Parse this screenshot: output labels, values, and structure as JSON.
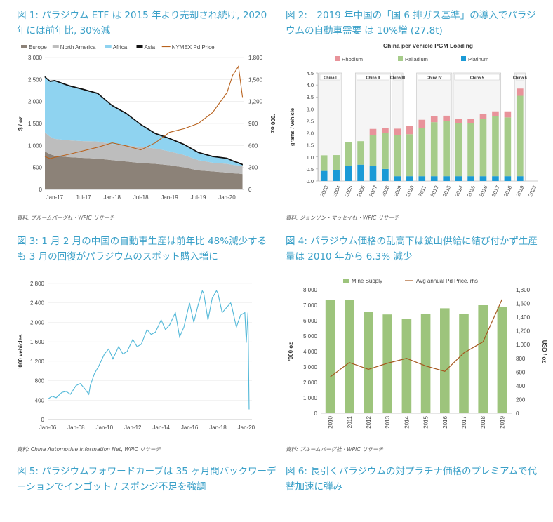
{
  "captions": {
    "fig1": "図 1: パラジウム ETF は 2015 年より売却され続け, 2020 年には前年比, 30%減",
    "fig2": "図 2:　2019 年中国の「国 6 排ガス基準」の導入でパラジウムの自動車需要 は 10%増 (27.8t)",
    "fig3": "図 3: 1 月 2 月の中国の自動車生産は前年比 48%減少するも 3 月の回復がパラジウムのスポット購入増に",
    "fig4": "図 4: パラジウム価格の乱高下は鉱山供給に結び付かず生産量は 2010 年から 6.3% 減少",
    "fig5": "図 5: パラジウムフォワードカーブは 35 ヶ月間バックワーデーションでインゴット / スポンジ不足を強調",
    "fig6": "図 6: 長引くパラジウムの対プラチナ価格のプレミアムで代替加速に弾み"
  },
  "sources": {
    "fig1": "資料: ブルームバーグ社・WPIC リサーチ",
    "fig2": "資料: ジョンソン・マッセイ社・WPIC リサーチ",
    "fig3": "資料: China Automotive information Net, WPIC リサーチ",
    "fig4": "資料: ブルームバーグ社・WPIC リサーチ"
  },
  "colors": {
    "caption": "#3aa0c8",
    "europe": "#8c8278",
    "north_america": "#bdbdbd",
    "africa": "#8fd3f0",
    "asia": "#111111",
    "pd_price": "#b8621e",
    "rhodium": "#e8939a",
    "palladium": "#a6cc8a",
    "platinum": "#1b9ad6",
    "vehicles": "#52b8d8",
    "mine_supply": "#9dc47c",
    "annual_price": "#a5571f"
  },
  "chart_data": [
    {
      "id": "fig1",
      "type": "area",
      "legend": [
        "Europe",
        "North America",
        "Africa",
        "Asia",
        "NYMEX Pd Price"
      ],
      "legend_placement": "top",
      "ylabel": "$ / oz",
      "y2label": "'000 oz",
      "xticks": [
        "Jan-17",
        "Jul-17",
        "Jan-18",
        "Jul-18",
        "Jan-19",
        "Jul-19",
        "Jan-20"
      ],
      "yticks": [
        "0",
        "500",
        "1,000",
        "1,500",
        "2,000",
        "2,500",
        "3,000"
      ],
      "y2ticks": [
        "0",
        "300",
        "600",
        "900",
        "1,200",
        "1,500",
        "1,800"
      ],
      "ylim": [
        0,
        3000
      ],
      "y2lim": [
        0,
        1800
      ],
      "x": [
        2016.83,
        2016.92,
        2017.0,
        2017.25,
        2017.5,
        2017.75,
        2018.0,
        2018.25,
        2018.5,
        2018.75,
        2019.0,
        2019.25,
        2019.5,
        2019.75,
        2020.0,
        2020.1,
        2020.2,
        2020.27
      ],
      "series": [
        {
          "name": "Europe",
          "axis": "right",
          "values": [
            520,
            480,
            460,
            440,
            430,
            420,
            400,
            380,
            360,
            350,
            330,
            300,
            260,
            245,
            230,
            220,
            215,
            210
          ]
        },
        {
          "name": "North America",
          "axis": "right",
          "values": [
            260,
            240,
            230,
            230,
            230,
            235,
            220,
            220,
            220,
            210,
            190,
            170,
            140,
            120,
            120,
            115,
            112,
            110
          ]
        },
        {
          "name": "Africa",
          "axis": "right",
          "values": [
            750,
            750,
            790,
            740,
            700,
            650,
            520,
            430,
            300,
            200,
            170,
            140,
            100,
            80,
            70,
            50,
            30,
            15
          ]
        },
        {
          "name": "Asia",
          "axis": "right",
          "values": [
            10,
            10,
            10,
            10,
            10,
            10,
            10,
            10,
            10,
            10,
            10,
            10,
            10,
            10,
            10,
            10,
            10,
            10
          ]
        },
        {
          "name": "NYMEX Pd Price",
          "axis": "left",
          "values": [
            750,
            700,
            730,
            800,
            880,
            960,
            1060,
            990,
            900,
            1060,
            1300,
            1380,
            1500,
            1750,
            2200,
            2600,
            2800,
            2100
          ]
        }
      ]
    },
    {
      "id": "fig2",
      "type": "bar",
      "title": "China per Vehicle PGM Loading",
      "legend": [
        "Rhodium",
        "Palladium",
        "Platinum"
      ],
      "legend_placement": "top",
      "ylabel": "grams / vehicle",
      "ylim": [
        0,
        4.5
      ],
      "yticks": [
        "0.0",
        "0.5",
        "1.0",
        "1.5",
        "2.0",
        "2.5",
        "3.0",
        "3.5",
        "4.0",
        "4.5"
      ],
      "categories": [
        "2003",
        "2004",
        "2005",
        "2006",
        "2007",
        "2008",
        "2009",
        "2010",
        "2011",
        "2012",
        "2013",
        "2014",
        "2015",
        "2016",
        "2017",
        "2018",
        "2019",
        "2023"
      ],
      "standards": [
        {
          "label": "China I",
          "from": "2003",
          "to": "2004"
        },
        {
          "label": "China II",
          "from": "2006",
          "to": "2008"
        },
        {
          "label": "China III",
          "from": "2009",
          "to": "2009"
        },
        {
          "label": "China IV",
          "from": "2011",
          "to": "2013"
        },
        {
          "label": "China 5",
          "from": "2014",
          "to": "2017"
        },
        {
          "label": "China 6",
          "from": "2019",
          "to": "2019"
        }
      ],
      "series": [
        {
          "name": "Platinum",
          "values": [
            0.42,
            0.45,
            0.62,
            0.68,
            0.62,
            0.5,
            0.2,
            0.2,
            0.2,
            0.2,
            0.2,
            0.2,
            0.2,
            0.2,
            0.2,
            0.2,
            0.2,
            null
          ]
        },
        {
          "name": "Palladium",
          "values": [
            0.65,
            0.63,
            1.0,
            0.98,
            1.3,
            1.5,
            1.7,
            1.75,
            2.0,
            2.25,
            2.3,
            2.2,
            2.2,
            2.4,
            2.5,
            2.45,
            3.35,
            null
          ]
        },
        {
          "name": "Rhodium",
          "values": [
            0,
            0,
            0,
            0,
            0.25,
            0.2,
            0.28,
            0.35,
            0.35,
            0.25,
            0.22,
            0.2,
            0.2,
            0.2,
            0.2,
            0.25,
            0.3,
            null
          ]
        }
      ]
    },
    {
      "id": "fig3",
      "type": "line",
      "ylabel": "'000 vehicles",
      "ylim": [
        0,
        2800
      ],
      "yticks": [
        "0",
        "400",
        "800",
        "1,200",
        "1,600",
        "2,000",
        "2,400",
        "2,800"
      ],
      "xticks": [
        "Jan-06",
        "Jan-08",
        "Jan-10",
        "Jan-12",
        "Jan-14",
        "Jan-16",
        "Jan-18",
        "Jan-20"
      ],
      "series": [
        {
          "name": "Vehicle production",
          "x": [
            2006.0,
            2006.3,
            2006.6,
            2007.0,
            2007.3,
            2007.6,
            2008.0,
            2008.3,
            2008.6,
            2008.9,
            2009.0,
            2009.3,
            2009.6,
            2010.0,
            2010.3,
            2010.6,
            2011.0,
            2011.3,
            2011.6,
            2012.0,
            2012.3,
            2012.6,
            2013.0,
            2013.3,
            2013.6,
            2014.0,
            2014.3,
            2014.6,
            2015.0,
            2015.3,
            2015.6,
            2016.0,
            2016.3,
            2016.6,
            2016.9,
            2017.0,
            2017.3,
            2017.6,
            2017.9,
            2018.0,
            2018.3,
            2018.6,
            2018.9,
            2019.0,
            2019.3,
            2019.6,
            2019.9,
            2020.0,
            2020.12,
            2020.2
          ],
          "values": [
            420,
            480,
            450,
            560,
            580,
            520,
            700,
            740,
            640,
            520,
            700,
            950,
            1100,
            1350,
            1450,
            1250,
            1500,
            1350,
            1400,
            1650,
            1500,
            1550,
            1850,
            1750,
            1800,
            2050,
            1850,
            1950,
            2200,
            1700,
            1900,
            2400,
            2000,
            2350,
            2650,
            2600,
            2050,
            2500,
            2650,
            2600,
            2200,
            2300,
            2400,
            2300,
            1900,
            2150,
            2200,
            1580,
            2200,
            210
          ]
        }
      ]
    },
    {
      "id": "fig4",
      "type": "bar",
      "legend": [
        "Mine Supply",
        "Avg annual Pd Price, rhs"
      ],
      "legend_placement": "top",
      "ylabel": "'000 oz",
      "y2label": "USD / oz",
      "ylim": [
        0,
        8000
      ],
      "y2lim": [
        0,
        1800
      ],
      "yticks": [
        "0",
        "1,000",
        "2,000",
        "3,000",
        "4,000",
        "5,000",
        "6,000",
        "7,000",
        "8,000"
      ],
      "y2ticks": [
        "0",
        "200",
        "400",
        "600",
        "800",
        "1,000",
        "1,200",
        "1,400",
        "1,600",
        "1,800"
      ],
      "categories": [
        "2010",
        "2011",
        "2012",
        "2013",
        "2014",
        "2015",
        "2016",
        "2017",
        "2018",
        "2019"
      ],
      "series": [
        {
          "name": "Mine Supply",
          "axis": "left",
          "values": [
            7350,
            7350,
            6550,
            6400,
            6100,
            6450,
            6800,
            6450,
            7000,
            6900
          ]
        },
        {
          "name": "Avg annual Pd Price, rhs",
          "axis": "right",
          "values": [
            530,
            740,
            640,
            730,
            800,
            690,
            610,
            880,
            1040,
            1660
          ]
        }
      ]
    }
  ]
}
